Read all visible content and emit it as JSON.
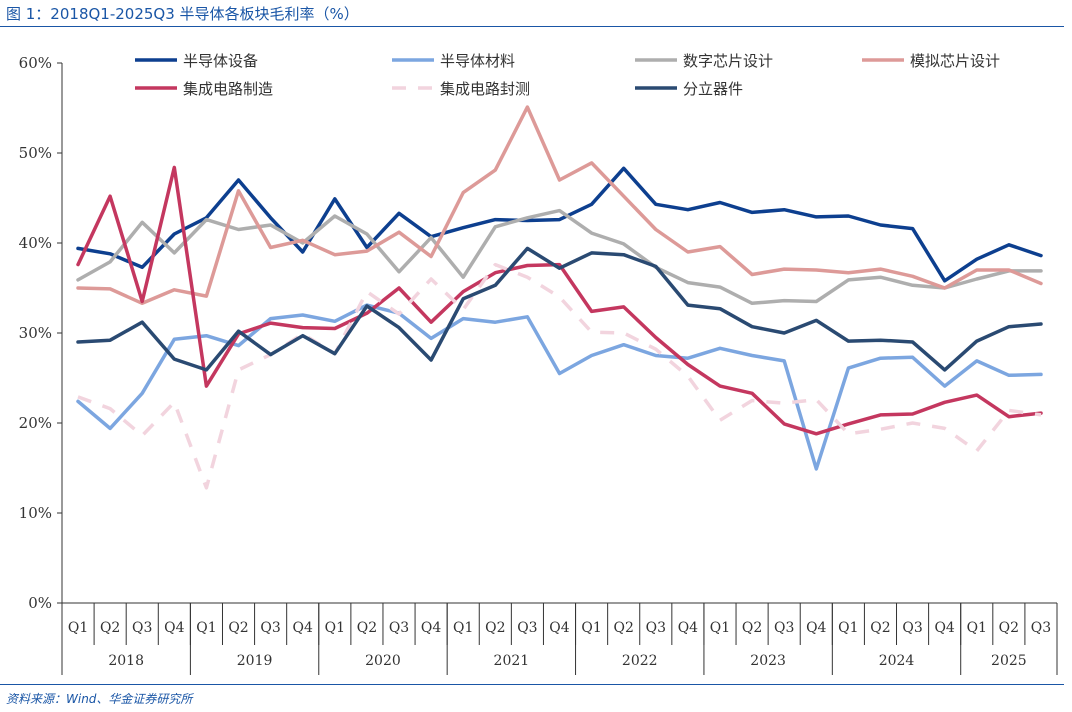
{
  "figure": {
    "title": "图 1：2018Q1-2025Q3 半导体各板块毛利率（%）",
    "source": "资料来源：Wind、华金证券研究所"
  },
  "chart_data": {
    "type": "line",
    "title": "",
    "xlabel": "",
    "ylabel": "",
    "ylim": [
      0,
      60
    ],
    "y_ticks": [
      "0%",
      "10%",
      "20%",
      "30%",
      "40%",
      "50%",
      "60%"
    ],
    "grid": false,
    "legend_position": "top",
    "quarter_labels": [
      "Q1",
      "Q2",
      "Q3",
      "Q4",
      "Q1",
      "Q2",
      "Q3",
      "Q4",
      "Q1",
      "Q2",
      "Q3",
      "Q4",
      "Q1",
      "Q2",
      "Q3",
      "Q4",
      "Q1",
      "Q2",
      "Q3",
      "Q4",
      "Q1",
      "Q2",
      "Q3",
      "Q4",
      "Q1",
      "Q2",
      "Q3",
      "Q4",
      "Q1",
      "Q2",
      "Q3"
    ],
    "years": [
      "2018",
      "2019",
      "2020",
      "2021",
      "2022",
      "2023",
      "2024",
      "2025"
    ],
    "series": [
      {
        "name": "半导体设备",
        "color": "#0d3f8f",
        "dash": false,
        "values": [
          39.4,
          38.8,
          37.3,
          41.0,
          42.8,
          47.0,
          42.8,
          39.0,
          44.9,
          39.5,
          43.3,
          40.7,
          41.7,
          42.6,
          42.5,
          42.6,
          44.3,
          48.3,
          44.3,
          43.7,
          44.5,
          43.4,
          43.7,
          42.9,
          43.0,
          42.0,
          41.6,
          35.8,
          38.2,
          39.8,
          38.6
        ]
      },
      {
        "name": "半导体材料",
        "color": "#7ca6e0",
        "dash": false,
        "values": [
          22.4,
          19.4,
          23.3,
          29.3,
          29.7,
          28.6,
          31.6,
          32.0,
          31.3,
          33.1,
          32.2,
          29.4,
          31.6,
          31.2,
          31.8,
          25.5,
          27.5,
          28.7,
          27.5,
          27.2,
          28.3,
          27.5,
          26.9,
          14.9,
          26.1,
          27.2,
          27.3,
          24.1,
          26.9,
          25.3,
          25.4
        ]
      },
      {
        "name": "数字芯片设计",
        "color": "#aeaeae",
        "dash": false,
        "values": [
          35.9,
          37.9,
          42.3,
          38.9,
          42.6,
          41.5,
          42.0,
          40.0,
          43.0,
          41.0,
          36.8,
          40.6,
          36.2,
          41.8,
          42.8,
          43.6,
          41.1,
          39.9,
          37.3,
          35.6,
          35.1,
          33.3,
          33.6,
          33.5,
          35.9,
          36.2,
          35.3,
          35.0,
          36.0,
          36.9,
          36.9
        ]
      },
      {
        "name": "模拟芯片设计",
        "color": "#dd9a98",
        "dash": false,
        "values": [
          35.0,
          34.9,
          33.3,
          34.8,
          34.1,
          45.8,
          39.5,
          40.3,
          38.7,
          39.1,
          41.2,
          38.5,
          45.6,
          48.1,
          55.1,
          47.0,
          48.9,
          45.2,
          41.5,
          39.0,
          39.6,
          36.5,
          37.1,
          37.0,
          36.7,
          37.1,
          36.3,
          35.0,
          37.0,
          37.0,
          35.5
        ]
      },
      {
        "name": "集成电路制造",
        "color": "#c4375f",
        "dash": false,
        "values": [
          37.6,
          45.2,
          33.5,
          48.4,
          24.1,
          29.9,
          31.1,
          30.6,
          30.5,
          32.2,
          35.0,
          31.2,
          34.6,
          36.7,
          37.5,
          37.6,
          32.4,
          32.9,
          29.5,
          26.5,
          24.1,
          23.3,
          19.9,
          18.8,
          19.9,
          20.9,
          21.0,
          22.3,
          23.1,
          20.7,
          21.1
        ]
      },
      {
        "name": "集成电路封测",
        "color": "#f2d4de",
        "dash": true,
        "values": [
          22.9,
          21.6,
          18.6,
          22.3,
          12.8,
          25.9,
          27.6,
          29.9,
          27.7,
          34.6,
          32.1,
          36.0,
          32.6,
          37.6,
          36.2,
          34.0,
          30.1,
          30.0,
          28.2,
          25.2,
          20.3,
          22.5,
          22.2,
          22.6,
          18.8,
          19.3,
          20.0,
          19.4,
          16.9,
          21.4,
          20.9
        ]
      },
      {
        "name": "分立器件",
        "color": "#2a4a72",
        "dash": false,
        "values": [
          29.0,
          29.2,
          31.2,
          27.1,
          25.9,
          30.2,
          27.6,
          29.7,
          27.7,
          33.0,
          30.6,
          27.0,
          33.8,
          35.3,
          39.4,
          37.2,
          38.9,
          38.7,
          37.4,
          33.1,
          32.7,
          30.7,
          30.0,
          31.4,
          29.1,
          29.2,
          29.0,
          25.9,
          29.1,
          30.7,
          31.0
        ]
      }
    ]
  }
}
